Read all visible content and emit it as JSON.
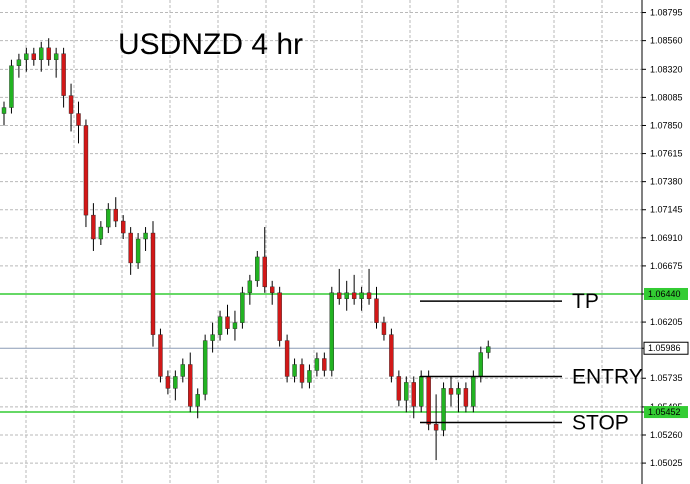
{
  "chart_data": {
    "type": "candlestick",
    "title": "USDNZD 4 hr",
    "ylim": [
      1.0485,
      1.089
    ],
    "y_ticks": [
      "1.08795",
      "1.08560",
      "1.08320",
      "1.08085",
      "1.07850",
      "1.07615",
      "1.07380",
      "1.07145",
      "1.06910",
      "1.06675",
      "1.06440",
      "1.06205",
      "1.05986",
      "1.05735",
      "1.05495",
      "1.05452",
      "1.05260",
      "1.05025"
    ],
    "grid": true,
    "colors": {
      "bull": "#22b322",
      "bear": "#d21818",
      "wick": "#000000",
      "level": "#33cc33",
      "price_line": "#8c9bb5"
    },
    "levels": [
      {
        "name": "TP",
        "value": 1.0644,
        "label": "1.06440"
      },
      {
        "name": "STOP",
        "value": 1.05452,
        "label": "1.05452"
      }
    ],
    "current_price": {
      "value": 1.05986,
      "label": "1.05986"
    },
    "annotations": [
      {
        "text": "TP",
        "value": 1.0638
      },
      {
        "text": "ENTRY",
        "value": 1.0575
      },
      {
        "text": "STOP",
        "value": 1.05365
      }
    ],
    "candles": [
      [
        1.0795,
        1.0805,
        1.0785,
        1.08
      ],
      [
        1.08,
        1.084,
        1.0795,
        1.0835
      ],
      [
        1.0835,
        1.0845,
        1.0825,
        1.084
      ],
      [
        1.084,
        1.085,
        1.083,
        1.0845
      ],
      [
        1.0845,
        1.085,
        1.0835,
        1.084
      ],
      [
        1.084,
        1.0855,
        1.083,
        1.085
      ],
      [
        1.085,
        1.0858,
        1.0835,
        1.084
      ],
      [
        1.084,
        1.085,
        1.0825,
        1.0845
      ],
      [
        1.0845,
        1.085,
        1.08,
        1.081
      ],
      [
        1.081,
        1.082,
        1.078,
        1.0795
      ],
      [
        1.0795,
        1.0805,
        1.077,
        1.0785
      ],
      [
        1.0785,
        1.079,
        1.07,
        1.071
      ],
      [
        1.071,
        1.072,
        1.068,
        1.069
      ],
      [
        1.069,
        1.0705,
        1.0685,
        1.07
      ],
      [
        1.07,
        1.072,
        1.0695,
        1.0715
      ],
      [
        1.0715,
        1.0725,
        1.07,
        1.0705
      ],
      [
        1.0705,
        1.071,
        1.069,
        1.0695
      ],
      [
        1.0695,
        1.07,
        1.066,
        1.067
      ],
      [
        1.067,
        1.0695,
        1.0665,
        1.069
      ],
      [
        1.069,
        1.07,
        1.068,
        1.0695
      ],
      [
        1.0695,
        1.0705,
        1.06,
        1.061
      ],
      [
        1.061,
        1.0615,
        1.057,
        1.0575
      ],
      [
        1.0575,
        1.058,
        1.056,
        1.0565
      ],
      [
        1.0565,
        1.058,
        1.0555,
        1.0575
      ],
      [
        1.0575,
        1.059,
        1.057,
        1.0585
      ],
      [
        1.0585,
        1.0595,
        1.0545,
        1.055
      ],
      [
        1.055,
        1.0565,
        1.054,
        1.056
      ],
      [
        1.056,
        1.061,
        1.0555,
        1.0605
      ],
      [
        1.0605,
        1.062,
        1.0595,
        1.061
      ],
      [
        1.061,
        1.063,
        1.0605,
        1.0625
      ],
      [
        1.0625,
        1.0635,
        1.061,
        1.0615
      ],
      [
        1.0615,
        1.063,
        1.0605,
        1.062
      ],
      [
        1.062,
        1.065,
        1.0615,
        1.0645
      ],
      [
        1.0645,
        1.066,
        1.0635,
        1.0655
      ],
      [
        1.0655,
        1.068,
        1.065,
        1.0675
      ],
      [
        1.0675,
        1.07,
        1.0645,
        1.065
      ],
      [
        1.065,
        1.0655,
        1.0635,
        1.0645
      ],
      [
        1.0645,
        1.065,
        1.06,
        1.0605
      ],
      [
        1.0605,
        1.061,
        1.057,
        1.0575
      ],
      [
        1.0575,
        1.059,
        1.057,
        1.0585
      ],
      [
        1.0585,
        1.059,
        1.0565,
        1.057
      ],
      [
        1.057,
        1.0585,
        1.0565,
        1.058
      ],
      [
        1.058,
        1.0595,
        1.0575,
        1.059
      ],
      [
        1.059,
        1.0595,
        1.0575,
        1.058
      ],
      [
        1.058,
        1.065,
        1.0575,
        1.0645
      ],
      [
        1.0645,
        1.0665,
        1.0635,
        1.064
      ],
      [
        1.064,
        1.0655,
        1.063,
        1.0645
      ],
      [
        1.0645,
        1.066,
        1.0635,
        1.064
      ],
      [
        1.064,
        1.065,
        1.063,
        1.0645
      ],
      [
        1.0645,
        1.0665,
        1.0635,
        1.064
      ],
      [
        1.064,
        1.065,
        1.0615,
        1.062
      ],
      [
        1.062,
        1.0625,
        1.0605,
        1.061
      ],
      [
        1.061,
        1.0615,
        1.057,
        1.0575
      ],
      [
        1.0575,
        1.058,
        1.055,
        1.0555
      ],
      [
        1.0555,
        1.0575,
        1.0545,
        1.057
      ],
      [
        1.057,
        1.0575,
        1.054,
        1.055
      ],
      [
        1.055,
        1.058,
        1.0545,
        1.0575
      ],
      [
        1.0575,
        1.058,
        1.053,
        1.0535
      ],
      [
        1.0535,
        1.056,
        1.0505,
        1.053
      ],
      [
        1.053,
        1.057,
        1.0525,
        1.0565
      ],
      [
        1.0565,
        1.0575,
        1.055,
        1.056
      ],
      [
        1.056,
        1.057,
        1.0545,
        1.0565
      ],
      [
        1.0565,
        1.057,
        1.0545,
        1.055
      ],
      [
        1.055,
        1.058,
        1.0545,
        1.0575
      ],
      [
        1.0575,
        1.06,
        1.057,
        1.0595
      ],
      [
        1.0595,
        1.0605,
        1.059,
        1.06
      ]
    ]
  }
}
